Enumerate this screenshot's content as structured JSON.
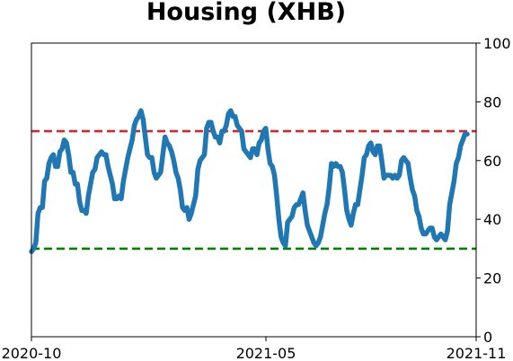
{
  "chart_data": {
    "type": "line",
    "title": "Housing (XHB)",
    "xlabel": "",
    "ylabel": "",
    "x_tick_labels": [
      "2020-10",
      "2021-05",
      "2021-11"
    ],
    "y_tick_labels": [
      "0",
      "20",
      "40",
      "60",
      "80",
      "100"
    ],
    "y_ticks": [
      0,
      20,
      40,
      60,
      80,
      100
    ],
    "ylim": [
      0,
      100
    ],
    "y_axis_side": "right",
    "grid": false,
    "legend": "none",
    "reference_lines": [
      {
        "y": 70,
        "color": "#d62728",
        "style": "dashed"
      },
      {
        "y": 30,
        "color": "#008000",
        "style": "dashed"
      }
    ],
    "series": [
      {
        "color": "#1f77b4",
        "values": [
          29,
          30,
          32,
          42,
          44,
          44,
          53,
          54,
          59,
          61,
          62,
          58,
          58,
          63,
          64,
          67,
          66,
          62,
          56,
          56,
          52,
          52,
          46,
          43,
          43,
          42,
          48,
          52,
          56,
          57,
          61,
          62,
          63,
          62,
          62,
          58,
          55,
          52,
          47,
          47,
          48,
          47,
          53,
          57,
          61,
          64,
          67,
          72,
          74,
          75,
          77,
          74,
          68,
          62,
          61,
          61,
          56,
          54,
          55,
          56,
          62,
          68,
          66,
          65,
          63,
          60,
          56,
          54,
          50,
          44,
          43,
          44,
          40,
          42,
          45,
          48,
          57,
          60,
          61,
          62,
          71,
          73,
          73,
          70,
          68,
          68,
          66,
          70,
          70,
          72,
          76,
          77,
          75,
          75,
          72,
          71,
          70,
          64,
          63,
          62,
          61,
          64,
          64,
          62,
          66,
          67,
          70,
          71,
          64,
          59,
          58,
          55,
          48,
          40,
          34,
          32,
          31,
          39,
          40,
          41,
          44,
          45,
          45,
          47,
          49,
          43,
          38,
          36,
          34,
          32,
          31,
          32,
          34,
          38,
          42,
          45,
          51,
          59,
          58,
          59,
          58,
          58,
          56,
          50,
          43,
          40,
          38,
          42,
          45,
          45,
          50,
          55,
          61,
          62,
          65,
          66,
          63,
          62,
          65,
          65,
          60,
          54,
          55,
          55,
          55,
          54,
          55,
          54,
          55,
          60,
          61,
          60,
          59,
          54,
          50,
          48,
          43,
          41,
          37,
          35,
          35,
          36,
          37,
          37,
          34,
          33,
          34,
          35,
          34,
          33,
          36,
          45,
          49,
          53,
          59,
          61,
          65,
          67,
          69,
          69
        ]
      }
    ]
  }
}
